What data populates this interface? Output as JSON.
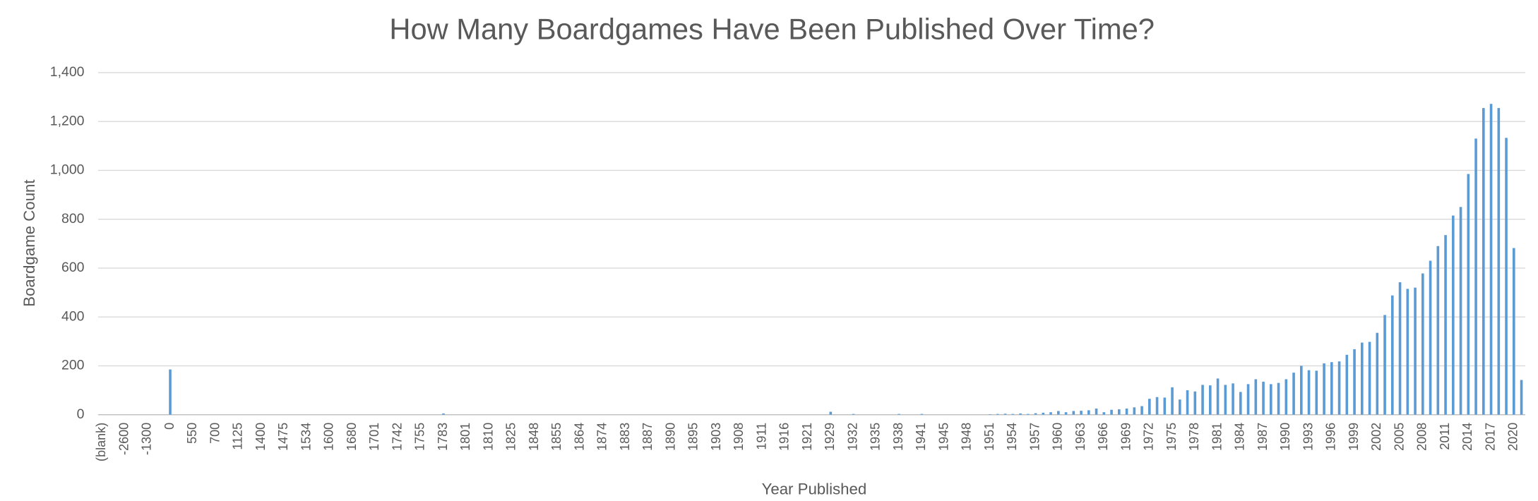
{
  "chart_data": {
    "type": "bar",
    "title": "How Many Boardgames Have Been Published Over Time?",
    "x_label": "Year Published",
    "y_label": "Boardgame Count",
    "color": "#5b9bd5",
    "grid": true,
    "ylim": [
      0,
      1400
    ],
    "yticks": [
      0,
      200,
      400,
      600,
      800,
      {
        "value": 1000,
        "label": "1,000"
      },
      {
        "value": 1200,
        "label": "1,200"
      },
      {
        "value": 1400,
        "label": "1,400"
      }
    ],
    "categories": [
      "(blank)",
      null,
      null,
      "-2600",
      null,
      null,
      "-1300",
      null,
      null,
      "0",
      null,
      null,
      "550",
      null,
      null,
      "700",
      null,
      null,
      "1125",
      null,
      null,
      "1400",
      null,
      null,
      "1475",
      null,
      null,
      "1534",
      null,
      null,
      "1600",
      null,
      null,
      "1680",
      null,
      null,
      "1701",
      null,
      null,
      "1742",
      null,
      null,
      "1755",
      null,
      null,
      "1783",
      null,
      null,
      "1801",
      null,
      null,
      "1810",
      null,
      null,
      "1825",
      null,
      null,
      "1848",
      null,
      null,
      "1855",
      null,
      null,
      "1864",
      null,
      null,
      "1874",
      null,
      null,
      "1883",
      null,
      null,
      "1887",
      null,
      null,
      "1890",
      null,
      null,
      "1895",
      null,
      null,
      "1903",
      null,
      null,
      "1908",
      null,
      null,
      "1911",
      null,
      null,
      "1916",
      null,
      null,
      "1921",
      null,
      null,
      "1929",
      null,
      null,
      "1932",
      null,
      null,
      "1935",
      null,
      null,
      "1938",
      null,
      null,
      "1941",
      null,
      null,
      "1945",
      null,
      null,
      "1948",
      null,
      null,
      "1951",
      null,
      null,
      "1954",
      null,
      null,
      "1957",
      null,
      null,
      "1960",
      null,
      null,
      "1963",
      null,
      null,
      "1966",
      null,
      null,
      "1969",
      null,
      null,
      "1972",
      null,
      null,
      "1975",
      null,
      null,
      "1978",
      null,
      null,
      "1981",
      null,
      null,
      "1984",
      null,
      null,
      "1987",
      null,
      null,
      "1990",
      null,
      null,
      "1993",
      null,
      null,
      "1996",
      null,
      null,
      "1999",
      null,
      null,
      "2002",
      null,
      null,
      "2005",
      null,
      null,
      "2008",
      null,
      null,
      "2011",
      null,
      null,
      "2014",
      null,
      null,
      "2017",
      null,
      null,
      "2020",
      null
    ],
    "values": [
      0,
      0,
      0,
      0,
      0,
      0,
      0,
      0,
      0,
      185,
      0,
      0,
      0,
      0,
      0,
      0,
      0,
      0,
      0,
      0,
      0,
      0,
      0,
      0,
      0,
      0,
      0,
      0,
      0,
      0,
      0,
      0,
      0,
      0,
      0,
      0,
      0,
      0,
      0,
      0,
      0,
      0,
      0,
      0,
      0,
      5,
      0,
      0,
      0,
      0,
      0,
      0,
      0,
      0,
      0,
      0,
      0,
      0,
      0,
      0,
      0,
      0,
      0,
      0,
      0,
      0,
      0,
      0,
      0,
      0,
      0,
      0,
      0,
      0,
      0,
      0,
      0,
      0,
      0,
      0,
      0,
      0,
      0,
      0,
      0,
      0,
      0,
      0,
      0,
      0,
      0,
      0,
      0,
      0,
      0,
      0,
      12,
      0,
      0,
      3,
      0,
      0,
      0,
      0,
      0,
      3,
      0,
      0,
      3,
      0,
      0,
      0,
      0,
      0,
      0,
      0,
      0,
      2,
      3,
      4,
      3,
      5,
      3,
      6,
      8,
      10,
      15,
      10,
      15,
      16,
      18,
      25,
      10,
      20,
      22,
      25,
      30,
      35,
      65,
      72,
      70,
      112,
      62,
      100,
      95,
      122,
      120,
      148,
      122,
      128,
      93,
      125,
      145,
      135,
      125,
      130,
      145,
      172,
      200,
      182,
      180,
      210,
      215,
      218,
      245,
      268,
      295,
      298,
      335,
      408,
      488,
      542,
      515,
      520,
      578,
      630,
      690,
      735,
      815,
      850,
      985,
      1130,
      1255,
      1272,
      1255,
      1133,
      682,
      142
    ]
  }
}
